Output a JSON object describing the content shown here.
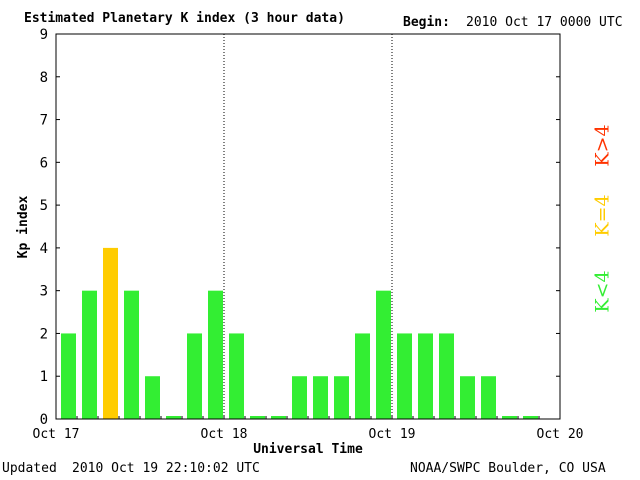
{
  "header": {
    "title": "Estimated Planetary K index (3 hour data)",
    "begin_label": "Begin:",
    "begin_value": "2010 Oct 17 0000 UTC"
  },
  "footer": {
    "updated_label": "Updated",
    "updated_value": "2010 Oct 19 22:10:02 UTC",
    "source": "NOAA/SWPC Boulder, CO USA"
  },
  "legend": {
    "below": {
      "label": "K<4",
      "color": "#33ee33"
    },
    "equal": {
      "label": "K=4",
      "color": "#ffcc00"
    },
    "above": {
      "label": "K>4",
      "color": "#ff3300"
    }
  },
  "chart_data": {
    "type": "bar",
    "title": "Estimated Planetary K index (3 hour data)",
    "xlabel": "Universal Time",
    "ylabel": "Kp index",
    "ylim": [
      0,
      9
    ],
    "yticks": [
      0,
      1,
      2,
      3,
      4,
      5,
      6,
      7,
      8,
      9
    ],
    "xtick_labels": [
      "Oct 17",
      "Oct 18",
      "Oct 19",
      "Oct 20"
    ],
    "day_dividers": [
      "Oct 18",
      "Oct 19"
    ],
    "bars_per_day": 8,
    "values": [
      2,
      3,
      4,
      3,
      1,
      0,
      2,
      3,
      2,
      0,
      0,
      1,
      1,
      1,
      2,
      3,
      2,
      2,
      2,
      1,
      1,
      0,
      0
    ],
    "colors": {
      "below4": "#33ee33",
      "equal4": "#ffcc00",
      "above4": "#ff3300"
    }
  }
}
